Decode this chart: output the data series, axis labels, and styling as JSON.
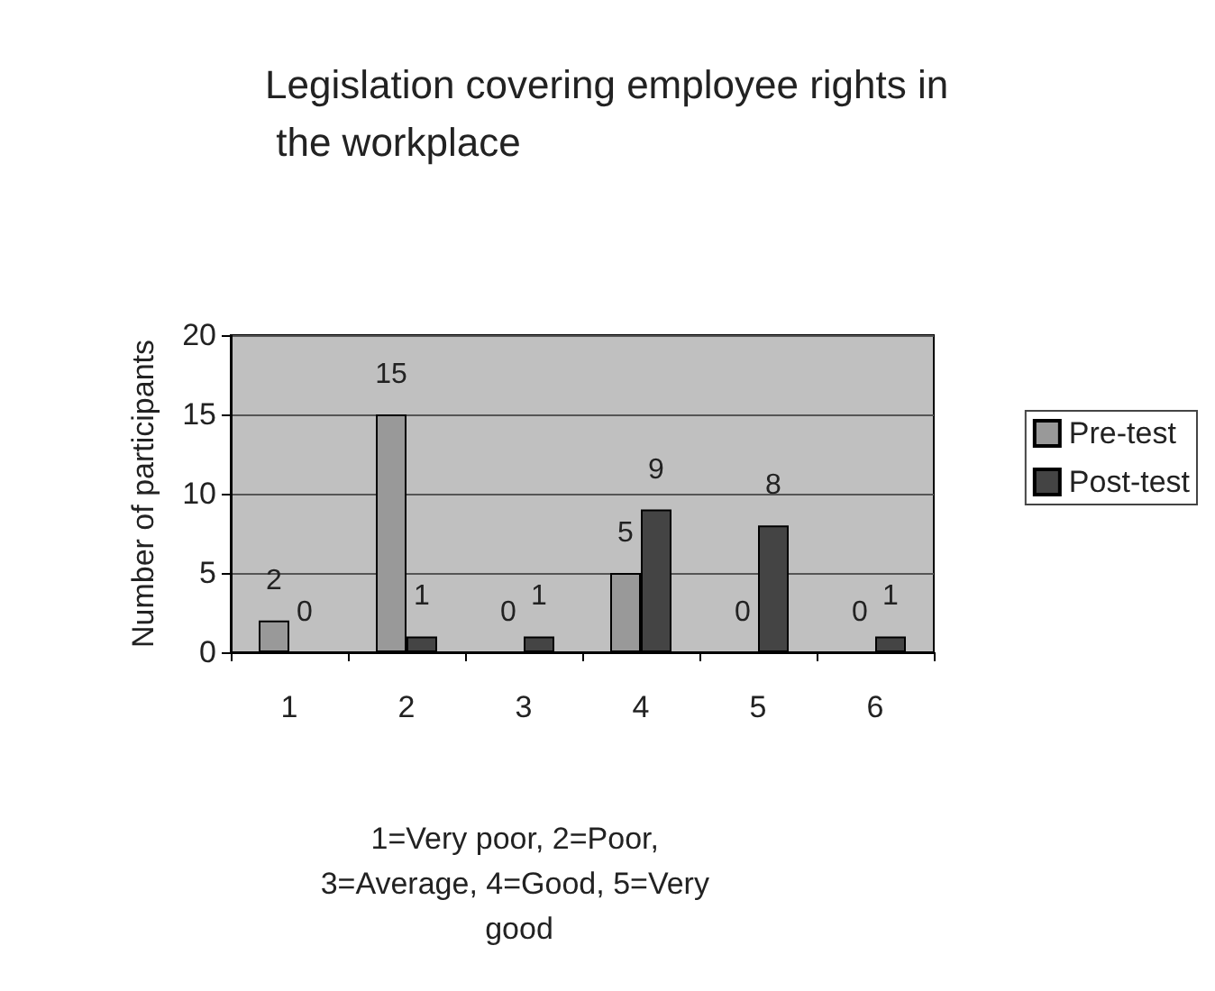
{
  "chart_data": {
    "type": "bar",
    "title": "Legislation covering employee rights in the workplace",
    "xlabel": "1=Very poor, 2=Poor, 3=Average, 4=Good, 5=Very good",
    "ylabel": "Number of participants",
    "categories": [
      "1",
      "2",
      "3",
      "4",
      "5",
      "6"
    ],
    "series": [
      {
        "name": "Pre-test",
        "color": "#999999",
        "values": [
          2,
          15,
          0,
          5,
          0,
          0
        ]
      },
      {
        "name": "Post-test",
        "color": "#444444",
        "values": [
          0,
          1,
          1,
          9,
          8,
          1
        ]
      }
    ],
    "ylim": [
      0,
      20
    ],
    "yticks": [
      0,
      5,
      10,
      15,
      20
    ],
    "grid": "y",
    "legend": "right",
    "data_labels": true
  }
}
